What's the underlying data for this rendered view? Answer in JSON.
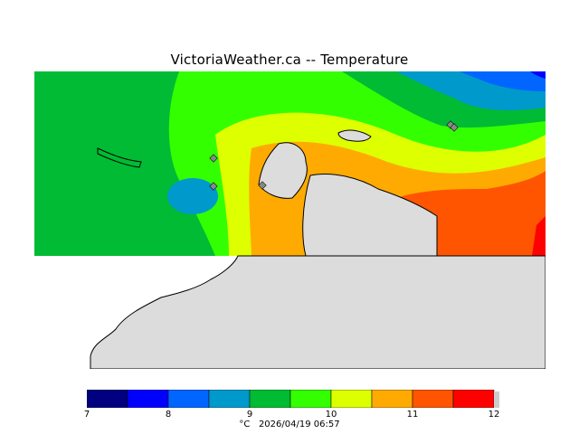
{
  "title": "VictoriaWeather.ca -- Temperature",
  "footer": {
    "unit": "°C",
    "timestamp": "2026/04/19 06:57"
  },
  "legend": {
    "ticks": [
      "7",
      "8",
      "9",
      "10",
      "11",
      "12"
    ],
    "bins": [
      {
        "from": 7.0,
        "to": 7.5,
        "color": "#000080"
      },
      {
        "from": 7.5,
        "to": 8.0,
        "color": "#0000ff"
      },
      {
        "from": 8.0,
        "to": 8.5,
        "color": "#0066ff"
      },
      {
        "from": 8.5,
        "to": 9.0,
        "color": "#0099cc"
      },
      {
        "from": 9.0,
        "to": 9.5,
        "color": "#00bb33"
      },
      {
        "from": 9.5,
        "to": 10.0,
        "color": "#33ff00"
      },
      {
        "from": 10.0,
        "to": 10.5,
        "color": "#ddff00"
      },
      {
        "from": 10.5,
        "to": 11.0,
        "color": "#ffaa00"
      },
      {
        "from": 11.0,
        "to": 11.5,
        "color": "#ff5500"
      },
      {
        "from": 11.5,
        "to": 12.0,
        "color": "#ff0000"
      }
    ]
  },
  "map_colors": {
    "land": "#dcdcdc",
    "coast": "#000000",
    "station": "#888888"
  }
}
